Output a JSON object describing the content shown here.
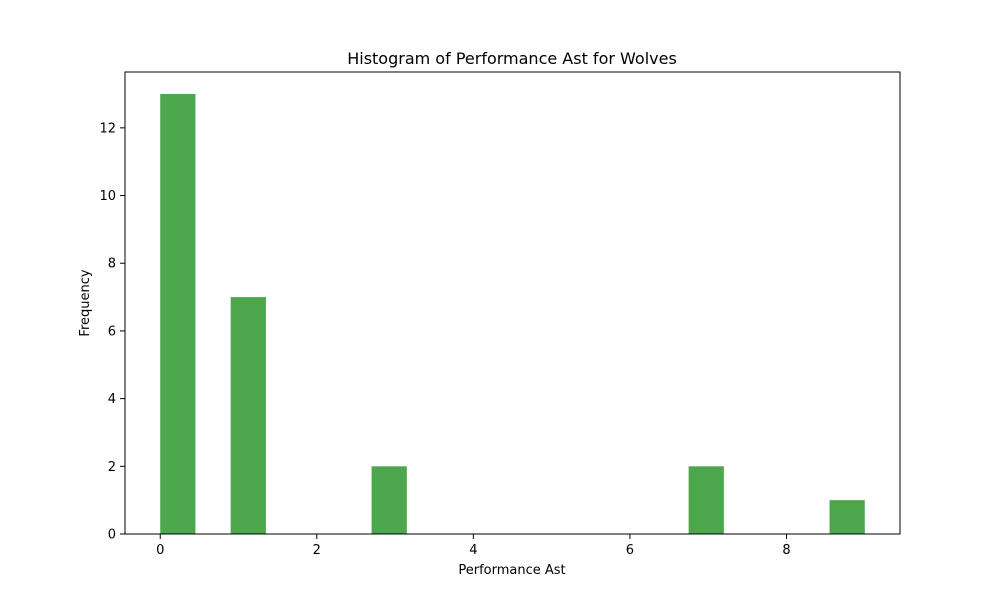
{
  "chart_data": {
    "type": "bar",
    "title": "Histogram of Performance Ast for Wolves",
    "xlabel": "Performance Ast",
    "ylabel": "Frequency",
    "bars": [
      {
        "x0": 0.0,
        "x1": 0.45,
        "value": 13
      },
      {
        "x0": 0.9,
        "x1": 1.35,
        "value": 7
      },
      {
        "x0": 2.7,
        "x1": 3.15,
        "value": 2
      },
      {
        "x0": 6.75,
        "x1": 7.2,
        "value": 2
      },
      {
        "x0": 8.55,
        "x1": 9.0,
        "value": 1
      }
    ],
    "xlim": [
      -0.45,
      9.45
    ],
    "ylim": [
      0,
      13.65
    ],
    "xticks": [
      0,
      2,
      4,
      6,
      8
    ],
    "yticks": [
      0,
      2,
      4,
      6,
      8,
      10,
      12
    ],
    "bar_color": "#4ca64c",
    "grid": false,
    "legend": "none"
  }
}
